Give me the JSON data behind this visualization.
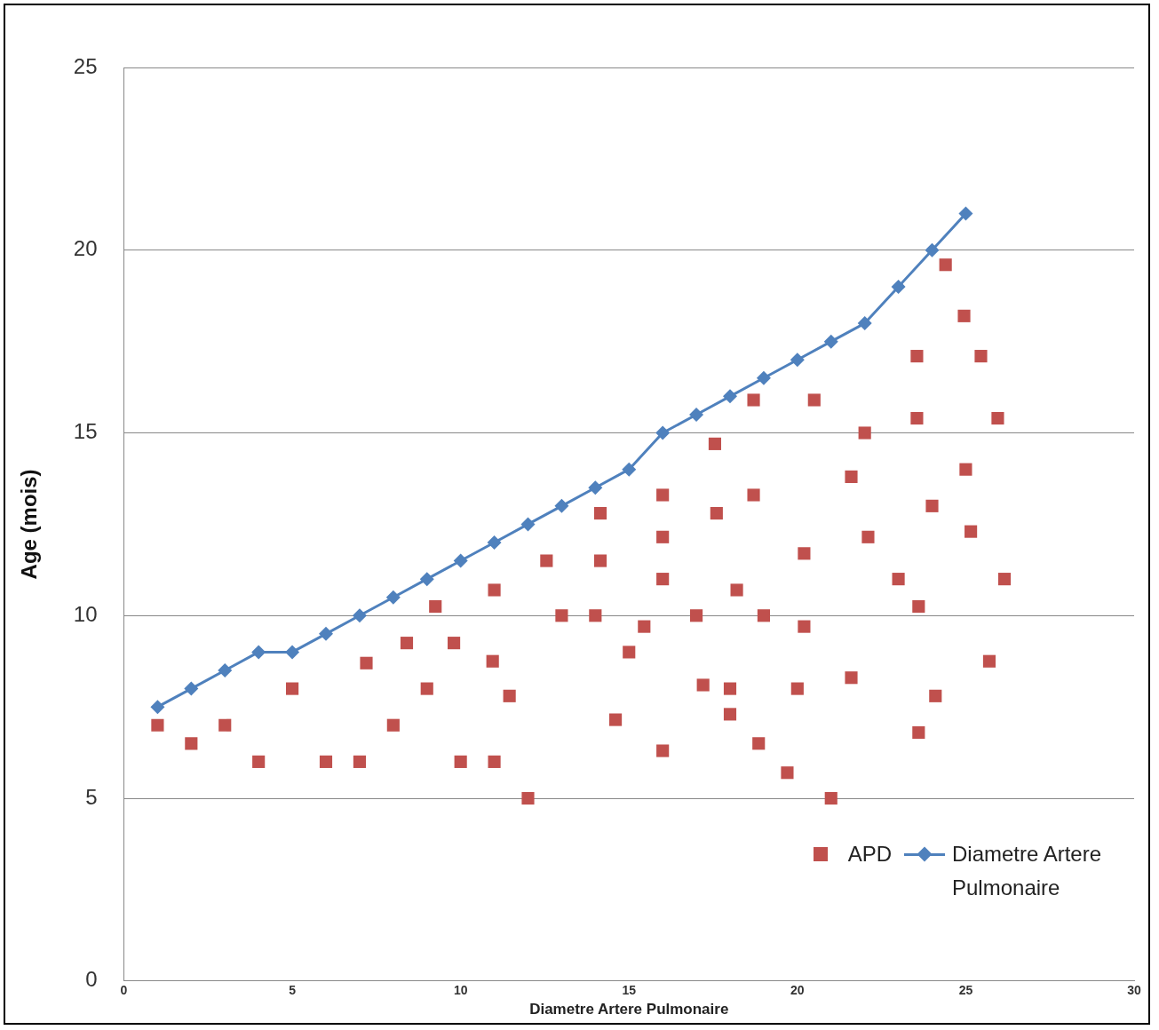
{
  "chart_data": {
    "type": "scatter",
    "xlabel": "Diametre Artere Pulmonaire",
    "ylabel": "Age (mois)",
    "xlim": [
      0,
      30
    ],
    "xticks": [
      0,
      5,
      10,
      15,
      20,
      25,
      30
    ],
    "ylim": [
      0,
      25
    ],
    "yticks": [
      0,
      5,
      10,
      15,
      20,
      25
    ],
    "grid": "y",
    "legend": "bottom right",
    "series": [
      {
        "name": "APD",
        "type": "scatter",
        "marker": "square",
        "color": "#c0504d",
        "x": [
          1,
          2,
          3,
          4,
          5,
          6,
          7,
          7.2,
          8,
          8.4,
          9,
          9.25,
          9.8,
          10,
          11,
          10.95,
          11,
          11.45,
          12,
          12.55,
          13,
          14,
          14.15,
          14.15,
          14.6,
          15,
          15.45,
          16,
          16,
          16,
          16,
          17,
          17.2,
          17.55,
          17.6,
          18,
          18,
          18.2,
          18.7,
          18.7,
          18.85,
          19,
          19.7,
          20,
          20.2,
          20.2,
          20.5,
          21,
          21.6,
          21.6,
          22,
          22.1,
          23,
          23.55,
          23.55,
          23.6,
          23.6,
          24,
          24.1,
          24.4,
          24.95,
          25,
          25.15,
          25.45,
          25.7,
          25.95,
          26.15
        ],
        "values": [
          7,
          6.5,
          7,
          6,
          8,
          6,
          6,
          8.7,
          7,
          9.25,
          8,
          10.25,
          9.25,
          6,
          10.7,
          8.75,
          6,
          7.8,
          5,
          11.5,
          10,
          10,
          12.8,
          11.5,
          7.15,
          9,
          9.7,
          13.3,
          12.15,
          11,
          6.3,
          10,
          8.1,
          14.7,
          12.8,
          8,
          7.3,
          10.7,
          15.9,
          13.3,
          6.5,
          10,
          5.7,
          8,
          11.7,
          9.7,
          15.9,
          5,
          8.3,
          13.8,
          15,
          12.15,
          11,
          17.1,
          15.4,
          10.25,
          6.8,
          13,
          7.8,
          19.6,
          18.2,
          14,
          12.3,
          17.1,
          8.75,
          15.4,
          11
        ]
      },
      {
        "name": "Diametre Artere Pulmonaire",
        "type": "line",
        "marker": "diamond",
        "color": "#4f81bd",
        "x": [
          1,
          2,
          3,
          4,
          5,
          6,
          7,
          8,
          9,
          10,
          11,
          12,
          13,
          14,
          15,
          16,
          17,
          18,
          19,
          20,
          21,
          22,
          23,
          24,
          25
        ],
        "values": [
          7.5,
          8,
          8.5,
          9,
          9,
          9.5,
          10,
          10.5,
          11,
          11.5,
          12,
          12.5,
          13,
          13.5,
          14,
          15,
          15.5,
          16,
          16.5,
          17,
          17.5,
          18,
          19,
          20,
          21
        ]
      }
    ]
  }
}
